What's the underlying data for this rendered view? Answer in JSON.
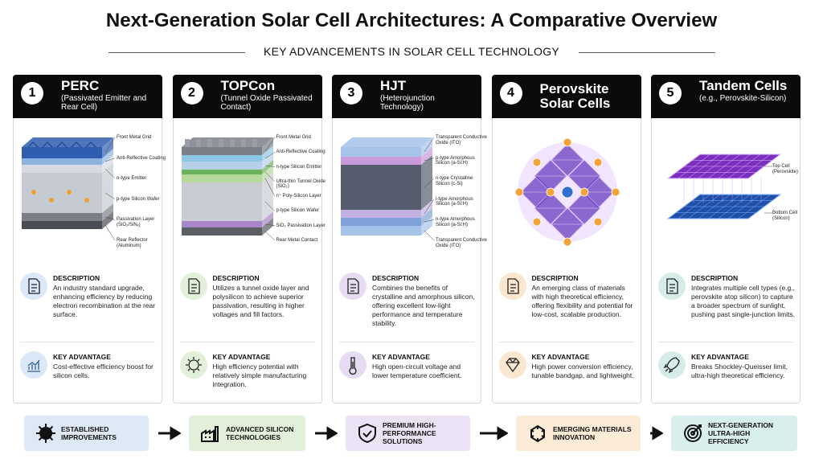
{
  "title": "Next-Generation Solar Cell Architectures: A Comparative Overview",
  "subtitle": "KEY ADVANCEMENTS IN SOLAR CELL TECHNOLOGY",
  "cards": [
    {
      "number": "1",
      "name": "PERC",
      "subname": "(Passivated Emitter and Rear Cell)",
      "layers": [
        "Front Metal Grid",
        "Anti-Reflective Coating",
        "n-type Emitter",
        "p-type Silicon Wafer",
        "Passivation Layer (SiO₂/SiNₓ)",
        "Rear Reflector (Aluminum)"
      ],
      "description_heading": "DESCRIPTION",
      "description": "An industry standard upgrade, enhancing efficiency by reducing electron recombination at the rear surface.",
      "advantage_heading": "KEY ADVANTAGE",
      "advantage": "Cost-effective efficiency boost for silicon cells."
    },
    {
      "number": "2",
      "name": "TOPCon",
      "subname": "(Tunnel Oxide Passivated Contact)",
      "layers": [
        "Front Metal Grid",
        "Anti-Reflective Coating",
        "n-type Silicon Emitter",
        "Ultra-thin Tunnel Oxide (SiO₂)",
        "n⁺ Poly-Silicon Layer",
        "p-type Silicon Wafer",
        "SiO₂ Passivation Layer",
        "Rear Metal Contact"
      ],
      "description_heading": "DESCRIPTION",
      "description": "Utilizes a tunnel oxide layer and polysilicon to achieve superior passivation, resulting in higher voltages and fill factors.",
      "advantage_heading": "KEY ADVANTAGE",
      "advantage": "High efficiency potential with relatively simple manufacturing integration."
    },
    {
      "number": "3",
      "name": "HJT",
      "subname": "(Heterojunction Technology)",
      "layers": [
        "Transparent Conductive Oxide (ITO)",
        "p-type Amorphous Silicon (a-Si:H)",
        "n-type Crystalline Silicon (c-Si)",
        "i-type Amorphous Silicon (a-Si:H)",
        "n-type Amorphous Silicon (a-Si:H)",
        "Transparent Conductive Oxide (ITO)"
      ],
      "description_heading": "DESCRIPTION",
      "description": "Combines the benefits of crystalline and amorphous silicon, offering excellent low-light performance and temperature stability.",
      "advantage_heading": "KEY ADVANTAGE",
      "advantage": "High open-circuit voltage and lower temperature coefficient."
    },
    {
      "number": "4",
      "name": "Perovskite Solar Cells",
      "description_heading": "DESCRIPTION",
      "description": "An emerging class of materials with high theoretical efficiency, offering flexibility and potential for low-cost, scalable production.",
      "advantage_heading": "KEY ADVANTAGE",
      "advantage": "High power conversion efficiency, tunable bandgap, and lightweight."
    },
    {
      "number": "5",
      "name": "Tandem Cells",
      "subname": "(e.g., Perovskite-Silicon)",
      "layers": [
        "Top Cell (Perovskite)",
        "Bottom Cell (Silicon)"
      ],
      "description_heading": "DESCRIPTION",
      "description": "Integrates multiple cell types (e.g., perovskite atop silicon) to capture a broader spectrum of sunlight, pushing past single-junction limits.",
      "advantage_heading": "KEY ADVANTAGE",
      "advantage": "Breaks Shockley-Queisser limit, ultra-high theoretical efficiency."
    }
  ],
  "progression": [
    "ESTABLISHED IMPROVEMENTS",
    "ADVANCED SILICON TECHNOLOGIES",
    "PREMIUM HIGH-PERFORMANCE SOLUTIONS",
    "EMERGING MATERIALS INNOVATION",
    "NEXT-GENERATION ULTRA-HIGH EFFICIENCY"
  ]
}
